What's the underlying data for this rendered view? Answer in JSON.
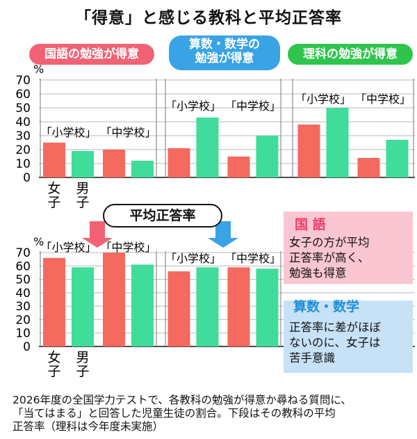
{
  "title": "「得意」と感じる教科と平均正答率",
  "subjects": [
    "国語の勉強が得意",
    "算数・数学の勉強が得意",
    "理科の勉強が得意"
  ],
  "subject_lines": {
    "math": [
      "算数・数学の",
      "勉強が得意"
    ]
  },
  "avg_label": "平均正答率",
  "legend": {
    "female": [
      "女",
      "子"
    ],
    "male": [
      "男",
      "子"
    ]
  },
  "notes": {
    "kokugo": {
      "title": "国 語",
      "lines": [
        "女子の方が平均",
        "正答率が高く、",
        "勉強も得意"
      ]
    },
    "math": {
      "title": "算数・数学",
      "lines": [
        "正答率に差がほぼ",
        "ないのに、女子は",
        "苦手意識"
      ]
    }
  },
  "footnote": [
    "2026年度の全国学力テストで、各教科の勉強が得意か尋ねる質問に、",
    "「当てはまる」と回答した児童生徒の割合。下段はその教科の平均",
    "正答率（理科は今年度未実施）"
  ],
  "colors": {
    "female": "#f46a5e",
    "male": "#3fdc9a",
    "kokugo": "#f06274",
    "math": "#3aa3e6",
    "science": "#2fc54c",
    "kokugo_box": "#f9c6d2",
    "math_box": "#c7e1f6"
  },
  "chart_data": [
    {
      "type": "bar",
      "title": "",
      "ylabel": "%",
      "ylim": [
        0,
        70
      ],
      "yticks": [
        "0",
        "10",
        "20",
        "30",
        "40",
        "50",
        "60",
        "70"
      ],
      "panels": [
        {
          "subject": "国語の勉強が得意",
          "groups": [
            "「小学校」",
            "「中学校」"
          ],
          "series": [
            {
              "name": "女子",
              "values": [
                25,
                20
              ]
            },
            {
              "name": "男子",
              "values": [
                19,
                12
              ]
            }
          ]
        },
        {
          "subject": "算数・数学の勉強が得意",
          "groups": [
            "「小学校」",
            "「中学校」"
          ],
          "series": [
            {
              "name": "女子",
              "values": [
                21,
                15
              ]
            },
            {
              "name": "男子",
              "values": [
                43,
                30
              ]
            }
          ]
        },
        {
          "subject": "理科の勉強が得意",
          "groups": [
            "「小学校」",
            "「中学校」"
          ],
          "series": [
            {
              "name": "女子",
              "values": [
                38,
                14
              ]
            },
            {
              "name": "男子",
              "values": [
                50,
                27
              ]
            }
          ]
        }
      ]
    },
    {
      "type": "bar",
      "title": "平均正答率",
      "ylabel": "%",
      "ylim": [
        0,
        70
      ],
      "yticks": [
        "0",
        "10",
        "20",
        "30",
        "40",
        "50",
        "60",
        "70"
      ],
      "panels": [
        {
          "subject": "国語",
          "groups": [
            "「小学校」",
            "「中学校」"
          ],
          "series": [
            {
              "name": "女子",
              "values": [
                66,
                70
              ]
            },
            {
              "name": "男子",
              "values": [
                59,
                61
              ]
            }
          ]
        },
        {
          "subject": "算数・数学",
          "groups": [
            "「小学校」",
            "「中学校」"
          ],
          "series": [
            {
              "name": "女子",
              "values": [
                56,
                59
              ]
            },
            {
              "name": "男子",
              "values": [
                59,
                58
              ]
            }
          ]
        }
      ]
    }
  ]
}
